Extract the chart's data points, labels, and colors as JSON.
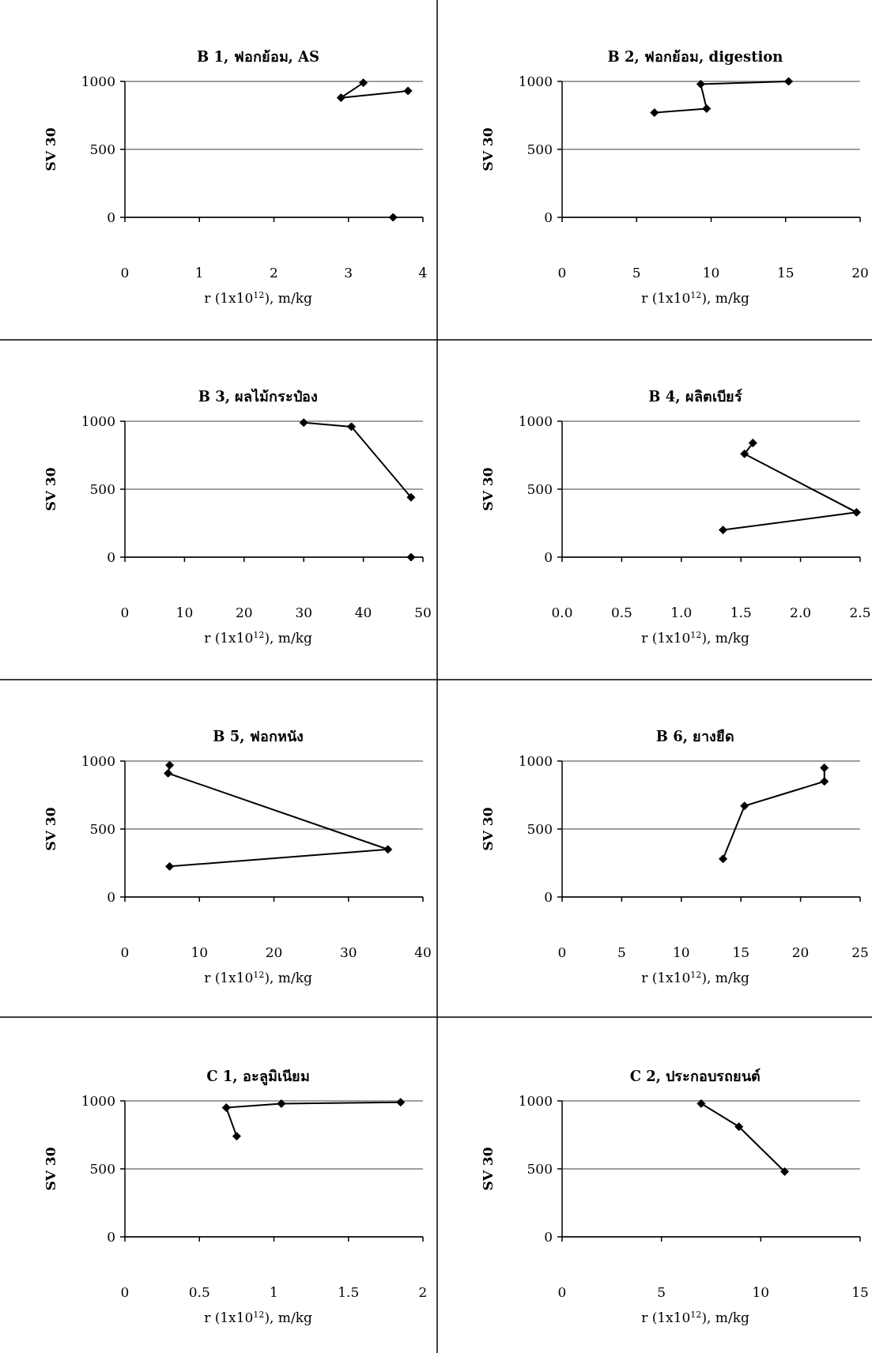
{
  "chart_data": [
    {
      "type": "line",
      "title": "B 1, ฟอกย้อม, AS",
      "xlabel": "r (1x10$^{12}$), m/kg",
      "ylabel": "SV 30",
      "xlim": [
        0,
        4
      ],
      "xticks": [
        0,
        1,
        2,
        3,
        4
      ],
      "ylim": [
        0,
        1000
      ],
      "yticks": [
        0,
        500,
        1000
      ],
      "grid": "y",
      "marker": "diamond",
      "series": [
        {
          "color": "#000000",
          "x": [
            3.6
          ],
          "values": [
            0
          ]
        },
        {
          "color": "#000000",
          "x": [
            3.2,
            2.9,
            3.8
          ],
          "values": [
            990,
            880,
            930
          ]
        }
      ]
    },
    {
      "type": "line",
      "title": "B 2, ฟอกย้อม, digestion",
      "xlabel": "r (1x10$^{12}$), m/kg",
      "ylabel": "SV 30",
      "xlim": [
        0,
        20
      ],
      "xticks": [
        0,
        5,
        10,
        15,
        20
      ],
      "ylim": [
        0,
        1000
      ],
      "yticks": [
        0,
        500,
        1000
      ],
      "grid": "y",
      "marker": "diamond",
      "series": [
        {
          "color": "#000000",
          "x": [
            6.2,
            9.7,
            9.3,
            15.2
          ],
          "values": [
            770,
            800,
            980,
            1000
          ]
        }
      ]
    },
    {
      "type": "line",
      "title": "B 3, ผลไม้กระป๋อง",
      "xlabel": "r (1x10$^{12}$), m/kg",
      "ylabel": "SV 30",
      "xlim": [
        0,
        50
      ],
      "xticks": [
        0,
        10,
        20,
        30,
        40,
        50
      ],
      "ylim": [
        0,
        1000
      ],
      "yticks": [
        0,
        500,
        1000
      ],
      "grid": "y",
      "marker": "diamond",
      "series": [
        {
          "color": "#000000",
          "x": [
            48
          ],
          "values": [
            0
          ]
        },
        {
          "color": "#000000",
          "x": [
            30,
            38,
            48
          ],
          "values": [
            990,
            960,
            440
          ]
        }
      ]
    },
    {
      "type": "line",
      "title": "B 4, ผลิตเบียร์",
      "xlabel": "r (1x10$^{12}$), m/kg",
      "ylabel": "SV 30",
      "xlim": [
        0,
        2.5
      ],
      "xticks": [
        {
          "value": 0,
          "label": "0.0"
        },
        0.5,
        {
          "value": 1,
          "label": "1.0"
        },
        1.5,
        {
          "value": 2,
          "label": "2.0"
        },
        2.5
      ],
      "ylim": [
        0,
        1000
      ],
      "yticks": [
        0,
        500,
        1000
      ],
      "grid": "y",
      "marker": "diamond",
      "series": [
        {
          "color": "#000000",
          "x": [
            1.6,
            1.53,
            2.47,
            1.35
          ],
          "values": [
            840,
            760,
            330,
            200
          ]
        }
      ]
    },
    {
      "type": "line",
      "title": "B 5, ฟอกหนัง",
      "xlabel": "r (1x10$^{12}$), m/kg",
      "ylabel": "SV 30",
      "xlim": [
        0,
        40
      ],
      "xticks": [
        0,
        10,
        20,
        30,
        40
      ],
      "ylim": [
        0,
        1000
      ],
      "yticks": [
        0,
        500,
        1000
      ],
      "grid": "y",
      "marker": "diamond",
      "series": [
        {
          "color": "#000000",
          "x": [
            6,
            5.8,
            35.3,
            6
          ],
          "values": [
            970,
            910,
            350,
            225
          ]
        }
      ]
    },
    {
      "type": "line",
      "title": "B 6, ยางยืด",
      "xlabel": "r (1x10$^{12}$), m/kg",
      "ylabel": "SV 30",
      "xlim": [
        0,
        25
      ],
      "xticks": [
        0,
        5,
        10,
        15,
        20,
        25
      ],
      "ylim": [
        0,
        1000
      ],
      "yticks": [
        0,
        500,
        1000
      ],
      "grid": "y",
      "marker": "diamond",
      "series": [
        {
          "color": "#000000",
          "x": [
            22,
            22,
            15.3,
            13.5
          ],
          "values": [
            950,
            850,
            670,
            280
          ]
        }
      ]
    },
    {
      "type": "line",
      "title": "C 1, อะลูมิเนียม",
      "xlabel": "r (1x10$^{12}$), m/kg",
      "ylabel": "SV 30",
      "xlim": [
        0,
        2
      ],
      "xticks": [
        0,
        0.5,
        1,
        1.5,
        2
      ],
      "ylim": [
        0,
        1000
      ],
      "yticks": [
        0,
        500,
        1000
      ],
      "grid": "y",
      "marker": "diamond",
      "series": [
        {
          "color": "#000000",
          "x": [
            0.75,
            0.68,
            1.05,
            1.85
          ],
          "values": [
            740,
            950,
            980,
            990
          ]
        }
      ]
    },
    {
      "type": "line",
      "title": "C 2, ประกอบรถยนต์",
      "xlabel": "r (1x10$^{12}$), m/kg",
      "ylabel": "SV 30",
      "xlim": [
        0,
        15
      ],
      "xticks": [
        0,
        5,
        10,
        15
      ],
      "ylim": [
        0,
        1000
      ],
      "yticks": [
        0,
        500,
        1000
      ],
      "grid": "y",
      "marker": "diamond",
      "series": [
        {
          "color": "#000000",
          "x": [
            7,
            8.9,
            11.2
          ],
          "values": [
            980,
            810,
            480
          ]
        }
      ]
    }
  ]
}
